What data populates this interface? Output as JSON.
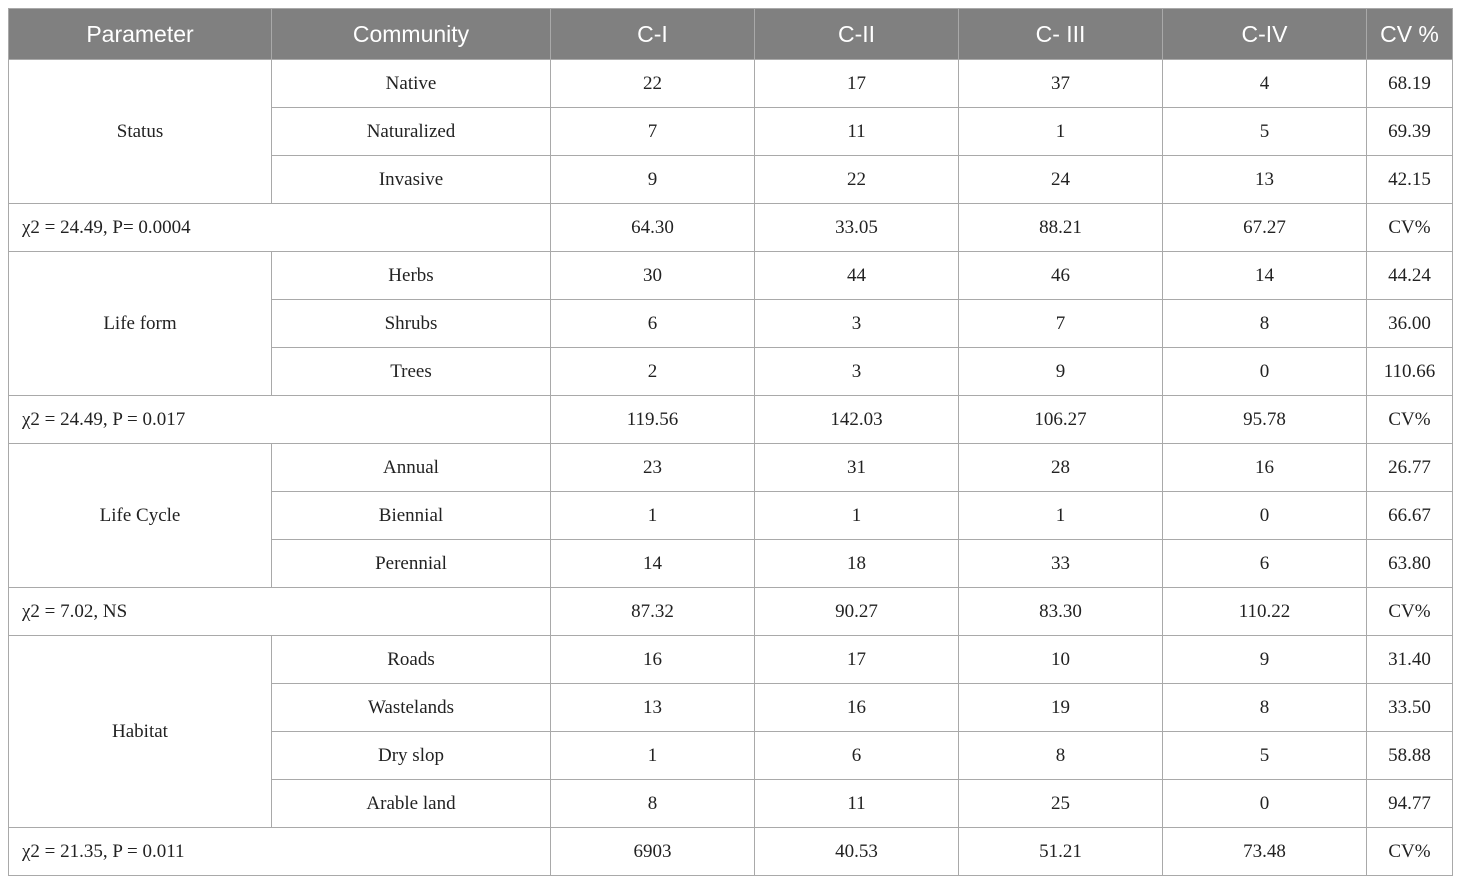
{
  "header": [
    "Parameter",
    "Community",
    "C-I",
    "C-II",
    "C- III",
    "C-IV",
    "CV %"
  ],
  "groups": [
    {
      "name": "Status",
      "rows": [
        {
          "label": "Native",
          "values": [
            "22",
            "17",
            "37",
            "4",
            "68.19"
          ]
        },
        {
          "label": "Naturalized",
          "values": [
            "7",
            "11",
            "1",
            "5",
            "69.39"
          ]
        },
        {
          "label": "Invasive",
          "values": [
            "9",
            "22",
            "24",
            "13",
            "42.15"
          ]
        }
      ],
      "summary": {
        "stat": "χ2 = 24.49, P= 0.0004",
        "values": [
          "64.30",
          "33.05",
          "88.21",
          "67.27",
          "CV%"
        ]
      }
    },
    {
      "name": "Life form",
      "rows": [
        {
          "label": "Herbs",
          "values": [
            "30",
            "44",
            "46",
            "14",
            "44.24"
          ]
        },
        {
          "label": "Shrubs",
          "values": [
            "6",
            "3",
            "7",
            "8",
            "36.00"
          ]
        },
        {
          "label": "Trees",
          "values": [
            "2",
            "3",
            "9",
            "0",
            "110.66"
          ]
        }
      ],
      "summary": {
        "stat": "χ2 = 24.49, P = 0.017",
        "values": [
          "119.56",
          "142.03",
          "106.27",
          "95.78",
          "CV%"
        ]
      }
    },
    {
      "name": "Life Cycle",
      "rows": [
        {
          "label": "Annual",
          "values": [
            "23",
            "31",
            "28",
            "16",
            "26.77"
          ]
        },
        {
          "label": "Biennial",
          "values": [
            "1",
            "1",
            "1",
            "0",
            "66.67"
          ]
        },
        {
          "label": "Perennial",
          "values": [
            "14",
            "18",
            "33",
            "6",
            "63.80"
          ]
        }
      ],
      "summary": {
        "stat": "χ2 = 7.02, NS",
        "values": [
          "87.32",
          "90.27",
          "83.30",
          "110.22",
          "CV%"
        ]
      }
    },
    {
      "name": "Habitat",
      "rows": [
        {
          "label": "Roads",
          "values": [
            "16",
            "17",
            "10",
            "9",
            "31.40"
          ]
        },
        {
          "label": "Wastelands",
          "values": [
            "13",
            "16",
            "19",
            "8",
            "33.50"
          ]
        },
        {
          "label": "Dry slop",
          "values": [
            "1",
            "6",
            "8",
            "5",
            "58.88"
          ]
        },
        {
          "label": "Arable land",
          "values": [
            "8",
            "11",
            "25",
            "0",
            "94.77"
          ]
        }
      ],
      "summary": {
        "stat": "χ2 = 21.35, P = 0.011",
        "values": [
          "6903",
          "40.53",
          "51.21",
          "73.48",
          "CV%"
        ]
      }
    }
  ]
}
